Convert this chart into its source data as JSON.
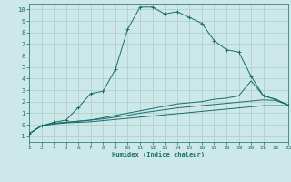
{
  "xlabel": "Humidex (Indice chaleur)",
  "bg_color": "#cce8e8",
  "grid_color": "#aacccc",
  "line_color": "#1a6b6b",
  "xlim": [
    2,
    23
  ],
  "ylim": [
    -1.5,
    10.5
  ],
  "xticks": [
    2,
    3,
    4,
    5,
    6,
    7,
    8,
    9,
    10,
    11,
    12,
    13,
    14,
    15,
    16,
    17,
    18,
    19,
    20,
    21,
    22,
    23
  ],
  "yticks": [
    -1,
    0,
    1,
    2,
    3,
    4,
    5,
    6,
    7,
    8,
    9,
    10
  ],
  "line1_x": [
    2,
    3,
    4,
    5,
    6,
    7,
    8,
    9,
    10,
    11,
    12,
    13,
    14,
    15,
    16,
    17,
    18,
    19,
    20,
    21,
    22,
    23
  ],
  "line1_y": [
    -0.8,
    -0.1,
    0.2,
    0.4,
    1.5,
    2.7,
    2.9,
    4.8,
    8.3,
    10.2,
    10.2,
    9.6,
    9.8,
    9.3,
    8.8,
    7.3,
    6.5,
    6.3,
    4.2,
    2.5,
    2.2,
    1.7
  ],
  "line2_x": [
    2,
    3,
    4,
    5,
    6,
    7,
    8,
    9,
    10,
    11,
    12,
    13,
    14,
    15,
    16,
    17,
    18,
    19,
    20,
    21,
    22,
    23
  ],
  "line2_y": [
    -0.8,
    -0.1,
    0.1,
    0.2,
    0.3,
    0.4,
    0.6,
    0.8,
    1.0,
    1.2,
    1.4,
    1.6,
    1.8,
    1.9,
    2.0,
    2.2,
    2.3,
    2.5,
    3.8,
    2.5,
    2.2,
    1.7
  ],
  "line3_x": [
    2,
    3,
    4,
    5,
    6,
    7,
    8,
    9,
    10,
    11,
    12,
    13,
    14,
    15,
    16,
    17,
    18,
    19,
    20,
    21,
    22,
    23
  ],
  "line3_y": [
    -0.8,
    -0.1,
    0.1,
    0.2,
    0.3,
    0.4,
    0.5,
    0.65,
    0.8,
    1.0,
    1.15,
    1.3,
    1.45,
    1.55,
    1.65,
    1.75,
    1.85,
    1.95,
    2.05,
    2.15,
    2.1,
    1.7
  ],
  "line4_x": [
    2,
    3,
    4,
    5,
    6,
    7,
    8,
    9,
    10,
    11,
    12,
    13,
    14,
    15,
    16,
    17,
    18,
    19,
    20,
    21,
    22,
    23
  ],
  "line4_y": [
    -0.8,
    -0.1,
    0.05,
    0.15,
    0.2,
    0.25,
    0.35,
    0.45,
    0.55,
    0.65,
    0.75,
    0.85,
    0.95,
    1.05,
    1.15,
    1.25,
    1.35,
    1.45,
    1.55,
    1.65,
    1.65,
    1.65
  ]
}
